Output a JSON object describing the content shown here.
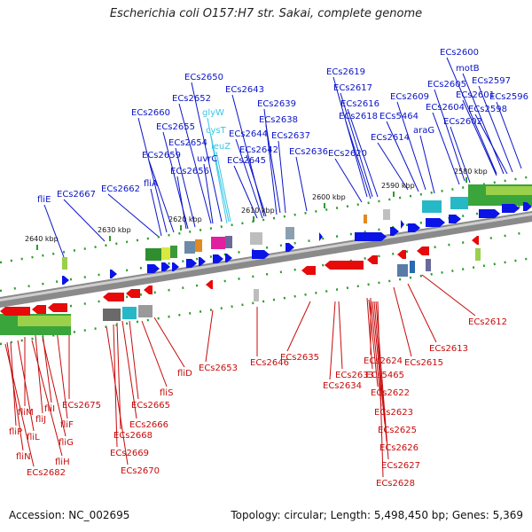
{
  "title": "Escherichia coli O157:H7 str. Sakai, complete genome",
  "footer": {
    "accession": "Accession: NC_002695",
    "summary": "Topology: circular; Length: 5,498,450 bp; Genes: 5,369"
  },
  "colors": {
    "forward_label": "#0a14c8",
    "reverse_label": "#c80a0a",
    "trna_label": "#39c6e8",
    "forward_gene": "#0a14e6",
    "reverse_gene": "#e60a0a",
    "backbone": "#888888"
  },
  "scale_ticks": [
    "2640 kbp",
    "2630 kbp",
    "2620 kbp",
    "2610 kbp",
    "2600 kbp",
    "2590 kbp",
    "2580 kbp"
  ],
  "top_labels": [
    "ECs2600",
    "motB",
    "ECs2597",
    "ECs2596",
    "ECs2598",
    "ECs2601",
    "ECs2605",
    "ECs2604",
    "ECs2602",
    "ECs2609",
    "ECs5464",
    "araG",
    "ECs2619",
    "ECs2617",
    "ECs2616",
    "ECs2618",
    "ECs2614",
    "ECs2620",
    "ECs2650",
    "ECs2652",
    "ECs2643",
    "ECs2639",
    "ECs2638",
    "ECs2660",
    "ECs2655",
    "ECs2644",
    "ECs2637",
    "ECs2654",
    "ECs2642",
    "ECs2636",
    "ECs2659",
    "uvrC",
    "ECs2645",
    "ECs2656",
    "fliA",
    "ECs2662",
    "ECs2667",
    "fliE"
  ],
  "trna_labels": [
    "glyW",
    "cysT",
    "leuZ"
  ],
  "bottom_labels": [
    "ECs2612",
    "ECs2613",
    "ECs2615",
    "ECs2624",
    "ECs5465",
    "ECs2622",
    "ECs2623",
    "ECs2625",
    "ECs2626",
    "ECs2627",
    "ECs2628",
    "ECs2633",
    "ECs2634",
    "ECs2635",
    "ECs2646",
    "ECs2653",
    "fliD",
    "fliS",
    "ECs2665",
    "ECs2666",
    "ECs2668",
    "ECs2669",
    "ECs2670",
    "ECs2675",
    "fliF",
    "fliI",
    "fliJ",
    "fliM",
    "fliG",
    "fliL",
    "fliH",
    "fliP",
    "fliN",
    "ECs2682"
  ]
}
